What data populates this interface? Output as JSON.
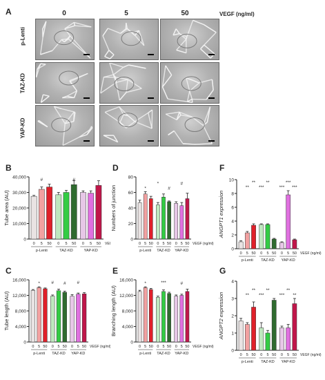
{
  "panelA": {
    "label": "A",
    "columns": [
      "0",
      "5",
      "50"
    ],
    "vegf_label": "VEGF (ng/ml)",
    "rows": [
      "p-Lenti",
      "TAZ-KD",
      "YAP-KD"
    ]
  },
  "colors": [
    "#e9e3e3",
    "#f2a1a1",
    "#e0202a",
    "#bfe8bf",
    "#33cc44",
    "#2f6b2f",
    "#e7c7e7",
    "#e070e0",
    "#c0164a"
  ],
  "chart_data": [
    {
      "panel": "B",
      "type": "bar",
      "ylabel": "Tube area (AU)",
      "ylim": [
        0,
        40000
      ],
      "yticks": [
        "0",
        "10,000",
        "20,000",
        "30,000",
        "40,000"
      ],
      "dose_labels": [
        "0",
        "5",
        "50"
      ],
      "xnote": "VEGF (ng/ml)",
      "groups": [
        "p-Lenti",
        "TAZ-KD",
        "YAP-KD"
      ],
      "values": [
        27500,
        32000,
        33500,
        28500,
        30000,
        35000,
        30000,
        29500,
        34500
      ],
      "errors": [
        600,
        1500,
        1800,
        1500,
        1300,
        2500,
        1000,
        1500,
        3000
      ],
      "annotations": [
        "#",
        "#"
      ]
    },
    {
      "panel": "C",
      "type": "bar",
      "ylabel": "Tube length (AU)",
      "ylim": [
        0,
        16000
      ],
      "yticks": [
        "0",
        "4,000",
        "8,000",
        "12,000",
        "16,000"
      ],
      "dose_labels": [
        "0",
        "5",
        "50"
      ],
      "xnote": "VEGF (ng/ml)",
      "groups": [
        "p-Lenti",
        "TAZ-KD",
        "YAP-KD"
      ],
      "values": [
        13300,
        14000,
        13700,
        11800,
        13200,
        12800,
        11800,
        12300,
        12400
      ],
      "errors": [
        200,
        200,
        200,
        300,
        400,
        300,
        400,
        300,
        300
      ],
      "annotations": [
        "*",
        "#",
        "#",
        "#"
      ]
    },
    {
      "panel": "D",
      "type": "bar",
      "ylabel": "Numbers of junction",
      "ylim": [
        0,
        80
      ],
      "yticks": [
        "0",
        "20",
        "40",
        "60",
        "80"
      ],
      "dose_labels": [
        "0",
        "5",
        "50"
      ],
      "xnote": "VEGF (ng/ml)",
      "groups": [
        "p-Lenti",
        "TAZ-KD",
        "YAP-KD"
      ],
      "values": [
        47,
        58,
        52,
        44,
        54,
        48,
        46,
        43,
        52
      ],
      "errors": [
        3,
        3,
        3,
        3,
        4,
        1,
        2,
        4,
        7
      ],
      "annotations": [
        "*",
        "*",
        "#",
        "#"
      ]
    },
    {
      "panel": "E",
      "type": "bar",
      "ylabel": "Branching length (AU)",
      "ylim": [
        0,
        16000
      ],
      "yticks": [
        "0",
        "4,000",
        "8,000",
        "12,000",
        "16,000"
      ],
      "dose_labels": [
        "0",
        "5",
        "50"
      ],
      "xnote": "VEGF (ng/ml)",
      "groups": [
        "p-Lenti",
        "TAZ-KD",
        "YAP-KD"
      ],
      "values": [
        13000,
        14000,
        13500,
        11500,
        13000,
        12500,
        11800,
        12000,
        13000
      ],
      "errors": [
        300,
        200,
        300,
        300,
        400,
        300,
        300,
        300,
        600
      ],
      "annotations": [
        "*",
        "***",
        "#"
      ]
    },
    {
      "panel": "F",
      "type": "bar",
      "ylabel": "ANGPT1 expression",
      "ylim": [
        0,
        10
      ],
      "yticks": [
        "0",
        "2",
        "4",
        "6",
        "8",
        "10"
      ],
      "dose_labels": [
        "0",
        "5",
        "50"
      ],
      "xnote": "VEGF (ng/ml)",
      "groups": [
        "p-Lenti",
        "TAZ-KD",
        "YAP-KD"
      ],
      "values": [
        1.0,
        2.3,
        3.4,
        3.5,
        3.5,
        1.4,
        0.9,
        7.8,
        1.3
      ],
      "errors": [
        0.15,
        0.2,
        0.2,
        0.1,
        0.1,
        0.1,
        0.1,
        0.6,
        0.1
      ],
      "annotations": [
        "**",
        "**",
        "***",
        "**",
        "***",
        "***",
        "***"
      ]
    },
    {
      "panel": "G",
      "type": "bar",
      "ylabel": "ANGPT2 expression",
      "ylim": [
        0,
        4
      ],
      "yticks": [
        "0",
        "1",
        "2",
        "3",
        "4"
      ],
      "dose_labels": [
        "0",
        "5",
        "50"
      ],
      "xnote": "VEGF (ng/ml)",
      "groups": [
        "p-Lenti",
        "TAZ-KD",
        "YAP-KD"
      ],
      "values": [
        1.7,
        1.5,
        2.5,
        1.3,
        1.0,
        2.9,
        1.3,
        1.3,
        2.7
      ],
      "errors": [
        0.15,
        0.1,
        0.3,
        0.3,
        0.15,
        0.1,
        0.1,
        0.2,
        0.3
      ],
      "annotations": [
        "**",
        "**",
        "***",
        "**",
        "***",
        "**",
        "**"
      ]
    }
  ]
}
